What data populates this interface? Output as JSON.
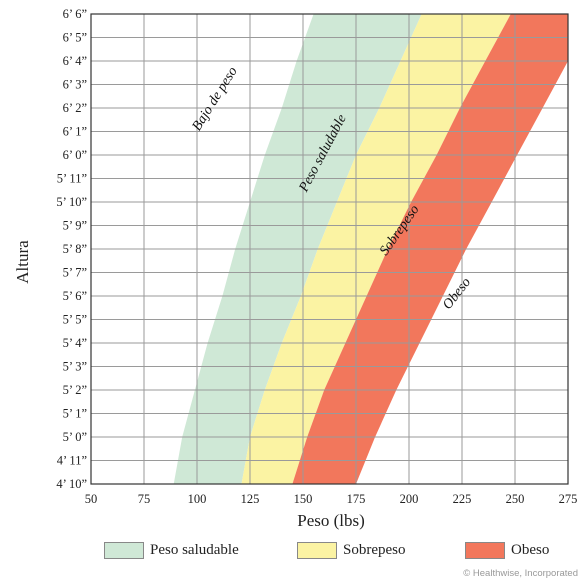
{
  "colors": {
    "healthy": "#cfe8d6",
    "overweight": "#fbf3a3",
    "obese": "#f2775c",
    "grid": "#9a9a9a",
    "axis": "#333333"
  },
  "credit": "© Healthwise, Incorporated",
  "chart_data": {
    "type": "area",
    "xlabel": "Peso (lbs)",
    "ylabel": "Altura",
    "xlim": [
      50,
      275
    ],
    "x_ticks": [
      50,
      75,
      100,
      125,
      150,
      175,
      200,
      225,
      250,
      275
    ],
    "ylim": [
      58,
      78
    ],
    "y_ticks": [
      {
        "value": 58,
        "label": "4’ 10”"
      },
      {
        "value": 59,
        "label": "4’ 11”"
      },
      {
        "value": 60,
        "label": "5’ 0”"
      },
      {
        "value": 61,
        "label": "5’ 1”"
      },
      {
        "value": 62,
        "label": "5’ 2”"
      },
      {
        "value": 63,
        "label": "5’ 3”"
      },
      {
        "value": 64,
        "label": "5’ 4”"
      },
      {
        "value": 65,
        "label": "5’ 5”"
      },
      {
        "value": 66,
        "label": "5’ 6”"
      },
      {
        "value": 67,
        "label": "5’ 7”"
      },
      {
        "value": 68,
        "label": "5’ 8”"
      },
      {
        "value": 69,
        "label": "5’ 9”"
      },
      {
        "value": 70,
        "label": "5’ 10”"
      },
      {
        "value": 71,
        "label": "5’ 11”"
      },
      {
        "value": 72,
        "label": "6’ 0”"
      },
      {
        "value": 73,
        "label": "6’ 1”"
      },
      {
        "value": 74,
        "label": "6’ 2”"
      },
      {
        "value": 75,
        "label": "6’ 3”"
      },
      {
        "value": 76,
        "label": "6’ 4”"
      },
      {
        "value": 77,
        "label": "6’ 5”"
      },
      {
        "value": 78,
        "label": "6’ 6”"
      }
    ],
    "grid": true,
    "boundaries": {
      "healthy_lower": {
        "heights": [
          58,
          60,
          62,
          64,
          66,
          68,
          70,
          72,
          74,
          76,
          78
        ],
        "weights": [
          89,
          93,
          99,
          105,
          112,
          118,
          125,
          132,
          140,
          147,
          155
        ]
      },
      "overweight_lower": {
        "heights": [
          58,
          60,
          62,
          64,
          66,
          68,
          70,
          72,
          74,
          76,
          78
        ],
        "weights": [
          121,
          125,
          132,
          140,
          149,
          157,
          166,
          175,
          186,
          196,
          206
        ]
      },
      "obese_lower": {
        "heights": [
          58,
          60,
          62,
          64,
          66,
          68,
          70,
          72,
          74,
          76,
          78
        ],
        "weights": [
          145,
          152,
          160,
          170,
          180,
          190,
          201,
          213,
          224,
          236,
          248
        ]
      },
      "obese_upper": {
        "heights": [
          58,
          60,
          62,
          64,
          66,
          68,
          70,
          72,
          74,
          76,
          78
        ],
        "weights": [
          175,
          184,
          194,
          205,
          216,
          227,
          239,
          251,
          263,
          275,
          275
        ]
      }
    },
    "zones": [
      {
        "name": "Bajo de peso",
        "weight": 110,
        "height": 74.3,
        "angle": -58
      },
      {
        "name": "Peso saludable",
        "weight": 161,
        "height": 72.0,
        "angle": -62
      },
      {
        "name": "Sobrepeso",
        "weight": 197,
        "height": 68.7,
        "angle": -55
      },
      {
        "name": "Obeso",
        "weight": 224,
        "height": 66.0,
        "angle": -52
      }
    ],
    "legend": [
      {
        "label": "Peso saludable",
        "color_key": "healthy"
      },
      {
        "label": "Sobrepeso",
        "color_key": "overweight"
      },
      {
        "label": "Obeso",
        "color_key": "obese"
      }
    ]
  }
}
